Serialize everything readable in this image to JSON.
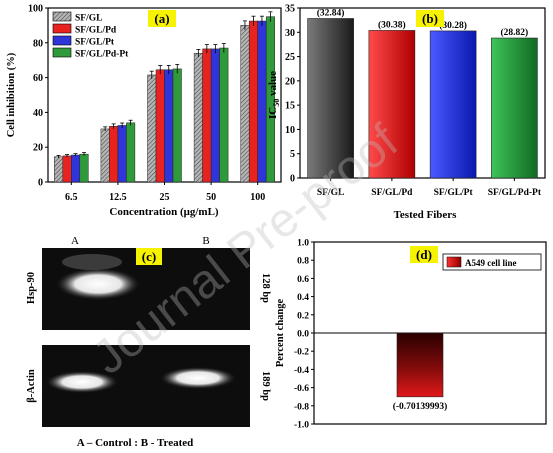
{
  "chart_data": [
    {
      "panel_label": "(a)",
      "type": "bar",
      "categories": [
        "6.5",
        "12.5",
        "25",
        "50",
        "100"
      ],
      "series": [
        {
          "name": "SF/GL",
          "color": "#8a8a8a",
          "pattern": "hatched",
          "values": [
            14.5,
            30.5,
            61.5,
            74,
            90
          ],
          "errors": [
            0.8,
            1.2,
            2.2,
            2.2,
            2.6
          ]
        },
        {
          "name": "SF/GL/Pd",
          "color": "#e8231f",
          "values": [
            15,
            32,
            64.5,
            76.5,
            92.5
          ],
          "errors": [
            0.8,
            1.4,
            2.5,
            2.5,
            2.8
          ]
        },
        {
          "name": "SF/GL/Pt",
          "color": "#2f35d9",
          "values": [
            15.5,
            32.5,
            64.5,
            76.5,
            92.5
          ],
          "errors": [
            0.8,
            1.4,
            2.5,
            2.5,
            2.8
          ]
        },
        {
          "name": "SF/GL/Pd-Pt",
          "color": "#2f9a3a",
          "values": [
            16,
            34,
            65,
            77,
            95
          ],
          "errors": [
            0.9,
            1.5,
            2.6,
            2.6,
            2.8
          ]
        }
      ],
      "xlabel": "Concentration (μg/mL)",
      "ylabel": "Cell inhibition (%)",
      "ylim": [
        0,
        100
      ],
      "yticks": [
        "0",
        "20",
        "40",
        "60",
        "80",
        "100"
      ],
      "legend_position": "top-left"
    },
    {
      "panel_label": "(b)",
      "type": "bar",
      "categories": [
        "SF/GL",
        "SF/GL/Pd",
        "SF/GL/Pt",
        "SF/GL/Pd-Pt"
      ],
      "values": [
        32.84,
        30.38,
        30.28,
        28.82
      ],
      "value_labels": [
        "(32.84)",
        "(30.38)",
        "(30.28)",
        "(28.82)"
      ],
      "colors": [
        "#4d4d4d",
        "#e01b1b",
        "#2638e0",
        "#1f9a35"
      ],
      "xlabel": "Tested Fibers",
      "ylabel_main": "IC",
      "ylabel_sub": "50",
      "ylabel_rest": " value",
      "ylim": [
        0,
        35
      ],
      "yticks": [
        "0",
        "5",
        "10",
        "15",
        "20",
        "25",
        "30",
        "35"
      ]
    },
    {
      "panel_label": "(d)",
      "type": "bar",
      "categories": [
        ""
      ],
      "series": [
        {
          "name": "A549 cell line",
          "color": "#c81414",
          "values": [
            -0.70139993
          ]
        }
      ],
      "value_labels": [
        "(-0.70139993)"
      ],
      "ylabel": "Percent change",
      "ylim": [
        -1.0,
        1.0
      ],
      "yticks": [
        "1.0",
        "0.8",
        "0.6",
        "0.4",
        "0.2",
        "0.0",
        "-0.2",
        "-0.4",
        "-0.6",
        "-0.8",
        "-1.0"
      ],
      "legend_position": "top-right"
    }
  ],
  "gel_panel": {
    "panel_label": "(c)",
    "lane_a": "A",
    "lane_b": "B",
    "row1_label": "Hsp-90",
    "row1_size": "128 bp",
    "row2_label": "β-Actin",
    "row2_size": "189 bp",
    "caption": "A – Control : B - Treated"
  },
  "watermark": "Journal Pre-proof"
}
